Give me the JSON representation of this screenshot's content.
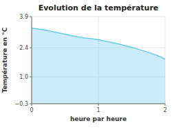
{
  "chart_data": {
    "type": "area",
    "title": "Evolution de la température",
    "xlabel": "heure par heure",
    "ylabel": "Température en °C",
    "x": [
      0,
      0.1,
      0.2,
      0.3,
      0.4,
      0.5,
      0.6,
      0.7,
      0.8,
      0.9,
      1.0,
      1.1,
      1.2,
      1.3,
      1.4,
      1.5,
      1.6,
      1.7,
      1.8,
      1.9,
      2.0
    ],
    "values": [
      3.35,
      3.3,
      3.25,
      3.18,
      3.12,
      3.05,
      2.98,
      2.92,
      2.87,
      2.83,
      2.78,
      2.72,
      2.65,
      2.58,
      2.5,
      2.42,
      2.32,
      2.22,
      2.12,
      2.0,
      1.85
    ],
    "color": "#66ccee",
    "xlim": [
      0,
      2
    ],
    "ylim": [
      -0.3,
      3.9
    ],
    "xticks": [
      0,
      1,
      2
    ],
    "yticks": [
      {
        "value": -0.3,
        "label": "−0.3"
      },
      {
        "value": 1.0,
        "label": "1.0"
      },
      2.4,
      3.9
    ],
    "grid": true
  }
}
